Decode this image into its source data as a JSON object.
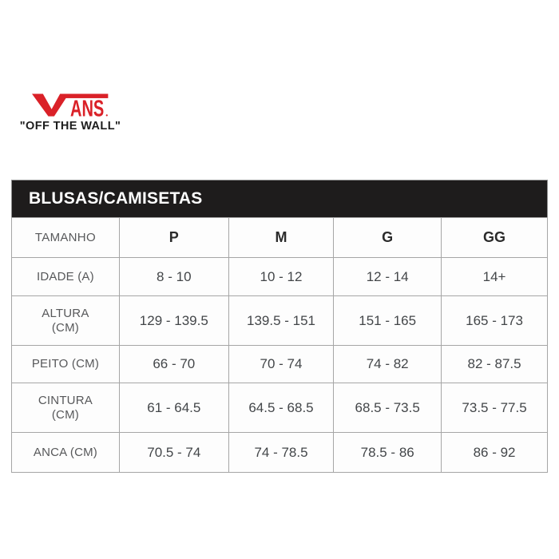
{
  "logo": {
    "brand": "VANS",
    "tagline": "\"OFF THE WALL\"",
    "brand_color": "#da2128",
    "tagline_color": "#1d1d1d"
  },
  "chart_data": {
    "type": "table",
    "title": "BLUSAS/CAMISETAS",
    "header_bg": "#1e1c1c",
    "header_text_color": "#ffffff",
    "border_color": "#a6a6a6",
    "columns": [
      "TAMANHO",
      "P",
      "M",
      "G",
      "GG"
    ],
    "rows": [
      {
        "label": "IDADE (A)",
        "values": [
          "8 - 10",
          "10 - 12",
          "12 - 14",
          "14+"
        ]
      },
      {
        "label": "ALTURA\n(CM)",
        "values": [
          "129 - 139.5",
          "139.5 - 151",
          "151 - 165",
          "165 - 173"
        ]
      },
      {
        "label": "PEITO (CM)",
        "values": [
          "66 - 70",
          "70 - 74",
          "74 - 82",
          "82 - 87.5"
        ]
      },
      {
        "label": "CINTURA\n(CM)",
        "values": [
          "61 - 64.5",
          "64.5 - 68.5",
          "68.5 - 73.5",
          "73.5 - 77.5"
        ]
      },
      {
        "label": "ANCA (CM)",
        "values": [
          "70.5 - 74",
          "74 - 78.5",
          "78.5 - 86",
          "86 - 92"
        ]
      }
    ]
  }
}
